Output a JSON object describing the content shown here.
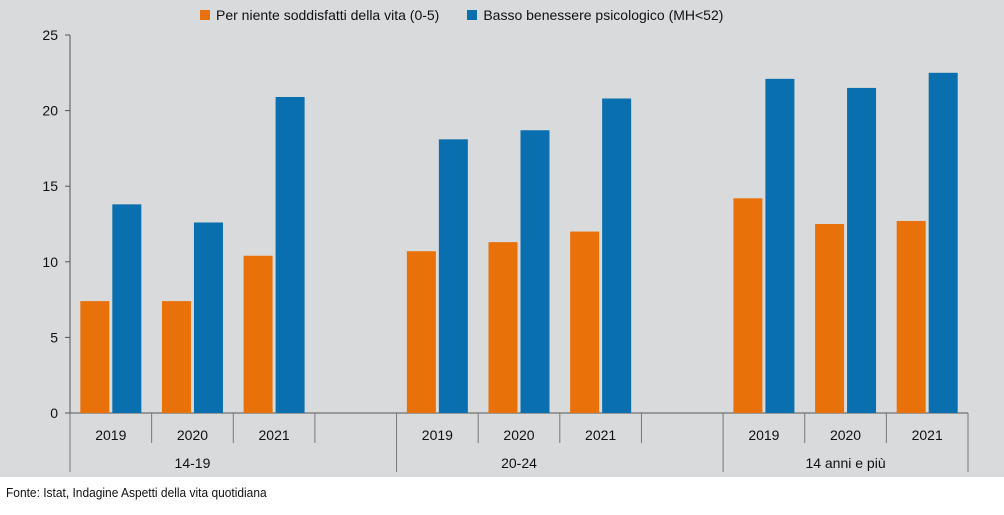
{
  "chart_data": {
    "type": "bar",
    "title": "",
    "groups": [
      {
        "label": "14-19",
        "categories": [
          "2019",
          "2020",
          "2021"
        ]
      },
      {
        "label": "20-24",
        "categories": [
          "2019",
          "2020",
          "2021"
        ]
      },
      {
        "label": "14 anni e più",
        "categories": [
          "2019",
          "2020",
          "2021"
        ]
      }
    ],
    "series": [
      {
        "name": "Per niente soddisfatti della vita (0-5)",
        "color": "#e8710a",
        "values": [
          7.4,
          7.4,
          10.4,
          10.7,
          11.3,
          12.0,
          14.2,
          12.5,
          12.7
        ]
      },
      {
        "name": "Basso benessere psicologico (MH<52)",
        "color": "#0a6fae",
        "values": [
          13.8,
          12.6,
          20.9,
          18.1,
          18.7,
          20.8,
          22.1,
          21.5,
          22.5
        ]
      }
    ],
    "yticks": [
      "0",
      "5",
      "10",
      "15",
      "20",
      "25"
    ],
    "ylim": [
      0,
      25
    ],
    "xlabel": "",
    "ylabel": "",
    "grid": false,
    "legend": "top"
  },
  "source_note": "Fonte: Istat, Indagine Aspetti della vita quotidiana"
}
